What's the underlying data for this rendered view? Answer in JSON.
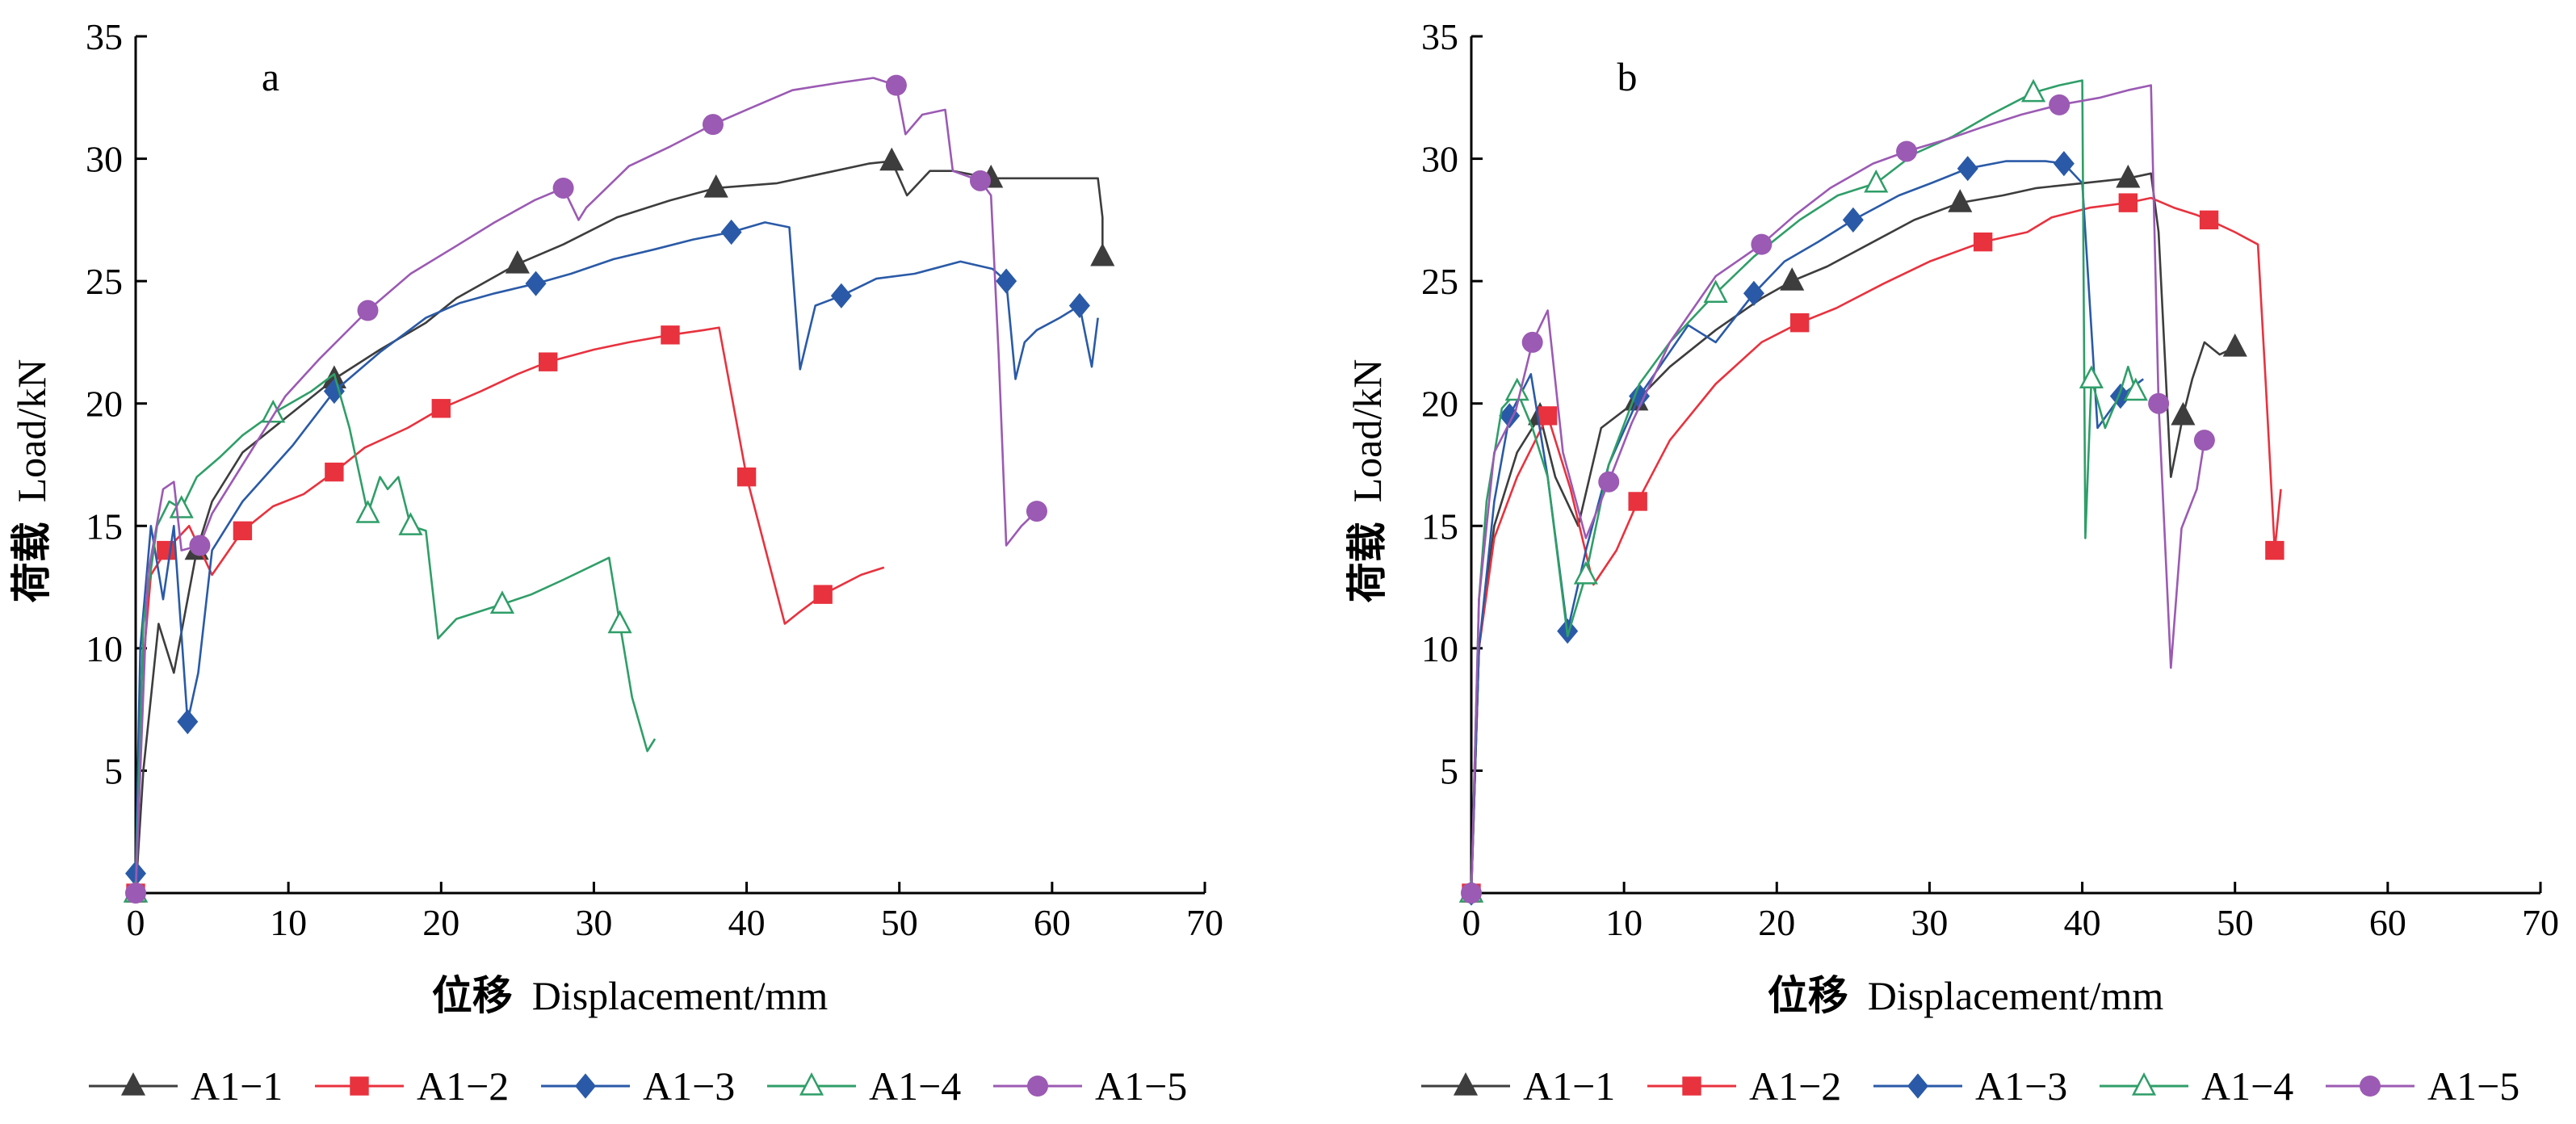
{
  "chart_data": [
    {
      "type": "line",
      "panel_label": "a",
      "xlabel_cn": "位移",
      "xlabel": "Displacement/mm",
      "ylabel_cn": "荷载",
      "ylabel": "Load/kN",
      "xlim": [
        0,
        70
      ],
      "ylim": [
        0,
        35
      ],
      "xticks": [
        "0",
        "10",
        "20",
        "30",
        "40",
        "50",
        "60",
        "70"
      ],
      "yticks": [
        "5",
        "10",
        "15",
        "20",
        "25",
        "30",
        "35"
      ],
      "grid": false,
      "legend_position": "bottom",
      "series": [
        {
          "name": "A1−1",
          "color": "#3d3d3d",
          "marker": "triangle-filled",
          "x": [
            0,
            0.5,
            1.5,
            2.5,
            4,
            5,
            7,
            10,
            13,
            16,
            19,
            21,
            25,
            28,
            31.5,
            35,
            38,
            42,
            45,
            48,
            49.5,
            50.5,
            52,
            53.5,
            56,
            60,
            63,
            63.3,
            63.3
          ],
          "y": [
            0,
            5,
            11,
            9,
            14,
            16,
            18,
            19.5,
            21,
            22.2,
            23.3,
            24.3,
            25.7,
            26.5,
            27.6,
            28.3,
            28.8,
            29,
            29.4,
            29.8,
            29.9,
            28.5,
            29.5,
            29.5,
            29.2,
            29.2,
            29.2,
            27.6,
            26
          ]
        },
        {
          "name": "A1−2",
          "color": "#e8323e",
          "marker": "square-filled",
          "x": [
            0,
            0.3,
            1,
            2,
            3.5,
            5,
            7,
            9,
            11,
            13,
            15,
            17.8,
            20,
            22.6,
            25,
            27,
            30,
            32.3,
            35,
            37.2,
            38.2,
            40,
            42.5,
            43.5,
            45,
            47.5,
            49
          ],
          "y": [
            0,
            8,
            13,
            14,
            15,
            13,
            14.8,
            15.8,
            16.3,
            17.2,
            18.2,
            19,
            19.8,
            20.5,
            21.2,
            21.7,
            22.2,
            22.5,
            22.8,
            23,
            23.1,
            17,
            11,
            11.5,
            12.2,
            13,
            13.3
          ]
        },
        {
          "name": "A1−3",
          "color": "#2a5aa7",
          "marker": "diamond-filled",
          "x": [
            0,
            0.3,
            1,
            1.8,
            2.5,
            3.4,
            4.1,
            5,
            7,
            10.3,
            13,
            16,
            19,
            21.2,
            23.5,
            26.2,
            28.5,
            31.3,
            34,
            36.5,
            39,
            41.2,
            42.8,
            43.5,
            44.5,
            46.2,
            48.5,
            51,
            54,
            56.1,
            57,
            57.6,
            58.2,
            59,
            60.5,
            61.8,
            62.6,
            63
          ],
          "y": [
            0.8,
            10,
            15,
            12,
            15,
            7,
            9,
            14,
            16,
            18.3,
            20.5,
            22.1,
            23.5,
            24.1,
            24.5,
            24.9,
            25.3,
            25.9,
            26.3,
            26.7,
            27,
            27.4,
            27.2,
            21.4,
            24,
            24.4,
            25.1,
            25.3,
            25.8,
            25.5,
            25,
            21,
            22.5,
            23,
            23.5,
            24,
            21.5,
            23.5
          ]
        },
        {
          "name": "A1−4",
          "color": "#2f9e68",
          "marker": "triangle-open",
          "x": [
            0,
            0.5,
            1.4,
            2.2,
            3,
            4,
            5.5,
            7,
            9,
            11.5,
            13,
            14,
            15.2,
            16,
            16.5,
            17.2,
            18,
            19,
            19.8,
            21,
            24,
            25.9,
            28,
            31,
            31.7,
            32.5,
            33.5,
            34
          ],
          "y": [
            0,
            11,
            15,
            16,
            15.7,
            17,
            17.8,
            18.7,
            19.6,
            20.5,
            21.2,
            19,
            15.5,
            17,
            16.5,
            17,
            15,
            14.8,
            10.4,
            11.2,
            11.8,
            12.2,
            12.8,
            13.7,
            11,
            8,
            5.8,
            6.3
          ]
        },
        {
          "name": "A1−5",
          "color": "#9b5ab3",
          "marker": "circle-filled",
          "x": [
            0,
            0.8,
            1.8,
            2.5,
            3,
            4.2,
            5,
            7,
            9.8,
            12,
            15.2,
            18,
            20.9,
            23.5,
            26.1,
            28,
            29,
            29.5,
            32.3,
            35,
            37.8,
            40,
            43,
            46,
            48.3,
            49.8,
            50.4,
            51.5,
            53,
            53.5,
            55.3,
            56,
            56.5,
            57,
            58,
            59
          ],
          "y": [
            0,
            13,
            16.5,
            16.8,
            14,
            14.2,
            15.5,
            17.5,
            20.3,
            21.8,
            23.8,
            25.3,
            26.4,
            27.4,
            28.3,
            28.8,
            27.5,
            28,
            29.7,
            30.5,
            31.4,
            32,
            32.8,
            33.1,
            33.3,
            33,
            31,
            31.8,
            32,
            29.5,
            29.1,
            28.5,
            22,
            14.2,
            15,
            15.6
          ]
        }
      ]
    },
    {
      "type": "line",
      "panel_label": "b",
      "xlabel_cn": "位移",
      "xlabel": "Displacement/mm",
      "ylabel_cn": "荷载",
      "ylabel": "Load/kN",
      "xlim": [
        0,
        70
      ],
      "ylim": [
        0,
        35
      ],
      "xticks": [
        "0",
        "10",
        "20",
        "30",
        "40",
        "50",
        "60",
        "70"
      ],
      "yticks": [
        "5",
        "10",
        "15",
        "20",
        "25",
        "30",
        "35"
      ],
      "grid": false,
      "legend_position": "bottom",
      "series": [
        {
          "name": "A1−1",
          "color": "#3d3d3d",
          "marker": "triangle-filled",
          "x": [
            0,
            0.5,
            1.5,
            3,
            4.5,
            5.5,
            7,
            8.5,
            10.8,
            13,
            16,
            19,
            21,
            23.3,
            26,
            29,
            32,
            34.8,
            37,
            40,
            43,
            44.5,
            45,
            45.8,
            46.6,
            47.2,
            48,
            49,
            50,
            50.6
          ],
          "y": [
            0,
            10,
            15,
            18,
            19.5,
            17,
            15,
            19,
            20.1,
            21.5,
            23,
            24.3,
            25,
            25.6,
            26.5,
            27.5,
            28.2,
            28.5,
            28.8,
            29,
            29.2,
            29.4,
            27,
            17,
            19.5,
            21,
            22.5,
            22,
            22.3,
            22
          ]
        },
        {
          "name": "A1−2",
          "color": "#e8323e",
          "marker": "square-filled",
          "x": [
            0,
            0.5,
            1.5,
            3,
            5,
            6.5,
            8,
            9.5,
            10.9,
            13,
            16,
            19,
            21.5,
            23.9,
            27,
            30,
            33.5,
            36.4,
            38,
            40.5,
            43,
            44.5,
            46,
            47.5,
            48.3,
            50,
            51.5,
            52,
            52.6,
            53
          ],
          "y": [
            0,
            10,
            14.5,
            17,
            19.5,
            16.5,
            12.6,
            14,
            16,
            18.5,
            20.8,
            22.5,
            23.3,
            23.9,
            24.9,
            25.8,
            26.6,
            27,
            27.6,
            28,
            28.2,
            28.4,
            28,
            27.7,
            27.5,
            27,
            26.5,
            21,
            14,
            16.5
          ]
        },
        {
          "name": "A1−3",
          "color": "#2a5aa7",
          "marker": "diamond-filled",
          "x": [
            0,
            0.5,
            1.5,
            2.5,
            3.9,
            5,
            6.3,
            7.5,
            9,
            11,
            14.2,
            16,
            18.5,
            20.5,
            22.7,
            25,
            28,
            30.1,
            32.5,
            35,
            37.6,
            38.8,
            40,
            41,
            42.5,
            44
          ],
          "y": [
            0,
            10,
            16,
            19.5,
            21.2,
            17,
            10.7,
            14,
            17.5,
            20.3,
            23.2,
            22.5,
            24.5,
            25.8,
            26.6,
            27.5,
            28.5,
            29,
            29.6,
            29.9,
            29.9,
            29.8,
            29,
            19,
            20.3,
            21
          ]
        },
        {
          "name": "A1−4",
          "color": "#2f9e68",
          "marker": "triangle-open",
          "x": [
            0,
            0.5,
            1,
            2,
            3,
            4,
            5,
            6.3,
            7.5,
            9,
            11,
            13,
            16,
            18.5,
            21.5,
            24,
            26.5,
            29,
            31.5,
            34,
            36.8,
            38.5,
            40,
            40.2,
            40.6,
            41.5,
            42.5,
            43,
            43.5
          ],
          "y": [
            0,
            12,
            16,
            19.8,
            20.5,
            19,
            17,
            10.5,
            13,
            17.5,
            20.8,
            22.5,
            24.5,
            26,
            27.5,
            28.5,
            29,
            30.2,
            30.9,
            31.8,
            32.7,
            33,
            33.2,
            14.5,
            21,
            19,
            20.5,
            21.5,
            20.5
          ]
        },
        {
          "name": "A1−5",
          "color": "#9b5ab3",
          "marker": "circle-filled",
          "x": [
            0,
            0.5,
            1.5,
            2.9,
            4,
            5,
            6,
            7.5,
            9,
            10.5,
            13,
            16,
            19,
            21.2,
            23.5,
            26.3,
            28.5,
            31.2,
            33.5,
            36,
            38.5,
            41.2,
            43,
            44.5,
            45,
            45.8,
            46.5,
            47.5,
            48
          ],
          "y": [
            0,
            12,
            18,
            19.7,
            22.5,
            23.8,
            18,
            14.5,
            16.8,
            19.2,
            22.5,
            25.2,
            26.5,
            27.7,
            28.8,
            29.8,
            30.3,
            30.8,
            31.3,
            31.8,
            32.2,
            32.5,
            32.8,
            33,
            20,
            9.2,
            14.9,
            16.5,
            18.5
          ]
        }
      ]
    }
  ]
}
